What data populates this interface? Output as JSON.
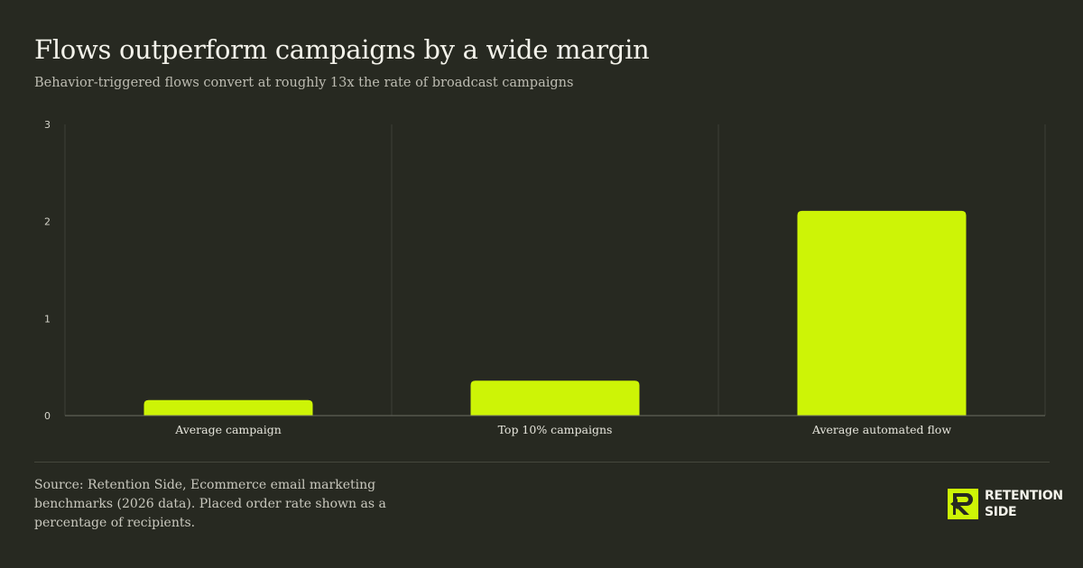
{
  "header": {
    "title": "Flows outperform campaigns by a wide margin",
    "subtitle": "Behavior-triggered flows convert at roughly 13x the rate of broadcast campaigns"
  },
  "chart_data": {
    "type": "bar",
    "categories": [
      "Average campaign",
      "Top 10% campaigns",
      "Average automated flow"
    ],
    "values": [
      0.16,
      0.36,
      2.11
    ],
    "ylim": [
      0,
      3
    ],
    "yticks": [
      "0",
      "1",
      "2",
      "3"
    ],
    "grid": "vertical separators only",
    "bar_color": "#cdf406"
  },
  "footer": {
    "source": "Source: Retention Side, Ecommerce email marketing benchmarks (2026 data). Placed order rate shown as a percentage of recipients."
  },
  "logo": {
    "line1": "RETENTION",
    "line2": "SIDE",
    "icon": "retention-side-logo-icon"
  },
  "colors": {
    "background": "#272921",
    "accent": "#cdf406",
    "text": "#f3f2ea"
  }
}
